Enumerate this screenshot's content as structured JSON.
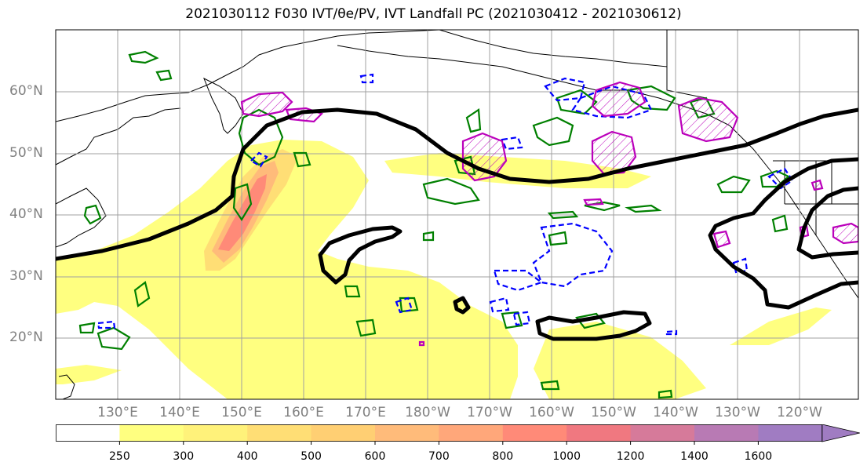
{
  "title": "2021030112 F030 IVT/θe/PV, IVT Landfall PC (2021030412 - 2021030612)",
  "map": {
    "lat_labels": [
      "60°N",
      "50°N",
      "40°N",
      "30°N",
      "20°N"
    ],
    "lon_labels": [
      "130°E",
      "140°E",
      "150°E",
      "160°E",
      "170°E",
      "180°W",
      "170°W",
      "160°W",
      "150°W",
      "140°W",
      "130°W",
      "120°W"
    ],
    "gridline_color": "#a0a0a0",
    "tick_label_color": "#808080",
    "contour_colors": {
      "theta_e_pc": "#000000",
      "pv_positive": "#008000",
      "pv_negative": "#0000ff",
      "ivt_landfall": "#bb00bb",
      "coastline": "#000000"
    }
  },
  "colorbar": {
    "levels": [
      250,
      300,
      400,
      500,
      600,
      700,
      800,
      1000,
      1200,
      1400,
      1600
    ],
    "tick_labels": [
      "250",
      "300",
      "400",
      "500",
      "600",
      "700",
      "800",
      "1000",
      "1200",
      "1400",
      "1600"
    ],
    "colors": [
      "#ffffff",
      "#ffff80",
      "#fff27a",
      "#ffde75",
      "#ffcf73",
      "#ffbb7a",
      "#ffa77a",
      "#ff8a78",
      "#f07880",
      "#d67a9a",
      "#b87ab4",
      "#a07cc2"
    ],
    "extend": "max"
  }
}
